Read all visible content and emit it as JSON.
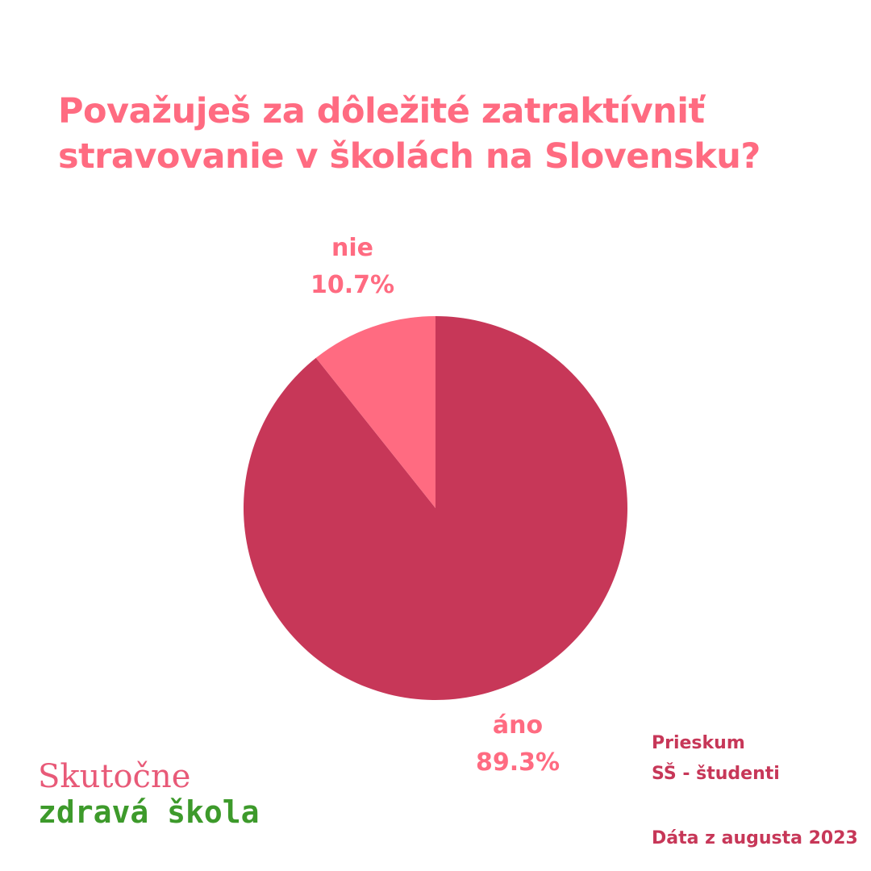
{
  "title_lines": [
    "Považuješ za dôležité zatraktívniť",
    "stravovanie v školách na Slovensku?"
  ],
  "chart_data": {
    "type": "pie",
    "title": "Považuješ za dôležité zatraktívniť stravovanie v školách na Slovensku?",
    "slices": [
      {
        "label": "áno",
        "value": 89.3,
        "value_label": "89.3%",
        "color": "#c73758"
      },
      {
        "label": "nie",
        "value": 10.7,
        "value_label": "10.7%",
        "color": "#ff6b81"
      }
    ],
    "start_angle": "12 o'clock, clockwise"
  },
  "survey": {
    "line1": "Prieskum",
    "line2": "SŠ - študenti"
  },
  "date_note": "Dáta z augusta 2023",
  "logo": {
    "line1": "Skutočne",
    "line2": "zdravá škola"
  },
  "colors": {
    "title": "#ff6b81",
    "accent_dark": "#c73758",
    "logo_green": "#3d9a2b"
  }
}
